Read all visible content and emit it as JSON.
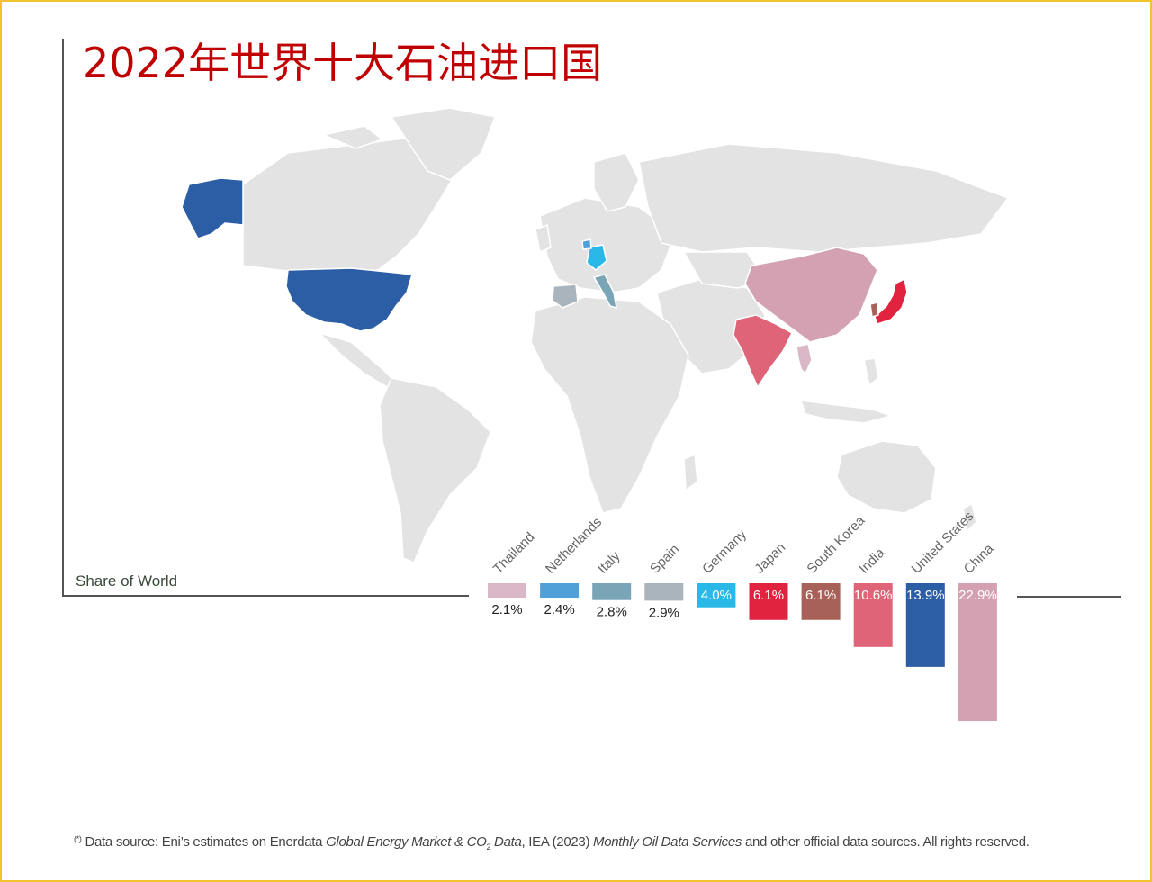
{
  "title": "2022年世界十大石油进口国",
  "share_label": "Share of World",
  "footnote": {
    "marker": "(*)",
    "part1": "Data source: Eni’s estimates on Enerdata ",
    "italic1": "Global Energy Market & CO",
    "sub": "2",
    "italic2": " Data",
    "part2": ", IEA (2023) ",
    "italic3": "Monthly Oil Data Services",
    "part3": " and other official data sources. All rights reserved."
  },
  "chart_data": {
    "type": "bar",
    "title": "2022年世界十大石油进口国",
    "ylabel": "Share of World",
    "categories": [
      "Thailand",
      "Netherlands",
      "Italy",
      "Spain",
      "Germany",
      "Japan",
      "South Korea",
      "India",
      "United States",
      "China"
    ],
    "values": [
      2.1,
      2.4,
      2.8,
      2.9,
      4.0,
      6.1,
      6.1,
      10.6,
      13.9,
      22.9
    ],
    "value_labels": [
      "2.1%",
      "2.4%",
      "2.8%",
      "2.9%",
      "4.0%",
      "6.1%",
      "6.1%",
      "10.6%",
      "13.9%",
      "22.9%"
    ],
    "colors": [
      "#d9b7c7",
      "#4f9fd9",
      "#7aa5b7",
      "#a9b4bc",
      "#29b8e8",
      "#e1233f",
      "#a86158",
      "#e06477",
      "#2c5ea6",
      "#d3a1b2"
    ],
    "map_highlight_colors": {
      "United States": "#2c5ea6",
      "Germany": "#29b8e8",
      "Italy": "#7aa5b7",
      "Spain": "#a9b4bc",
      "Netherlands": "#4f9fd9",
      "China": "#d3a1b2",
      "India": "#e06477",
      "Japan": "#e1233f",
      "South Korea": "#a86158",
      "Thailand": "#d9b7c7"
    },
    "grid": false,
    "legend": "none"
  }
}
